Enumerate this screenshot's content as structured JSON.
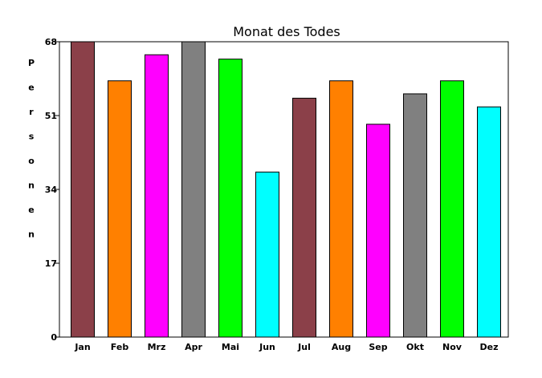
{
  "chart_data": {
    "type": "bar",
    "title": "Monat des Todes",
    "xlabel": "",
    "ylabel": "Personen",
    "categories": [
      "Jan",
      "Feb",
      "Mrz",
      "Apr",
      "Mai",
      "Jun",
      "Jul",
      "Aug",
      "Sep",
      "Okt",
      "Nov",
      "Dez"
    ],
    "values": [
      68,
      59,
      65,
      68,
      64,
      38,
      55,
      59,
      49,
      56,
      59,
      53
    ],
    "bar_colors": [
      "#8b4049",
      "#ff8000",
      "#ff00ff",
      "#808080",
      "#00ff00",
      "#00ffff",
      "#8b4049",
      "#ff8000",
      "#ff00ff",
      "#808080",
      "#00ff00",
      "#00ffff"
    ],
    "yticks": [
      "0",
      "17",
      "34",
      "51",
      "68"
    ],
    "ylim": [
      0,
      68
    ],
    "grid": false,
    "legend": "none"
  }
}
